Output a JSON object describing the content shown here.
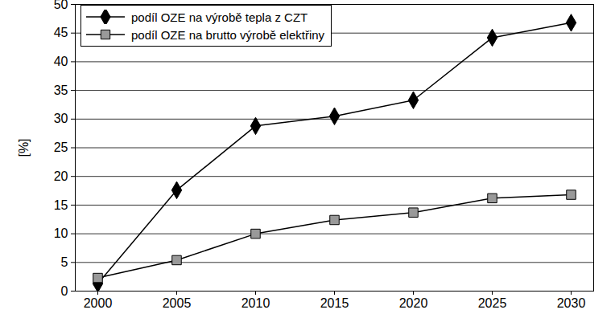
{
  "chart_data": {
    "type": "line",
    "y_label": "[%]",
    "categories": [
      "2000",
      "2005",
      "2010",
      "2015",
      "2020",
      "2025",
      "2030"
    ],
    "series": [
      {
        "name": "podíl OZE na výrobě tepla z CZT",
        "color": "#000000",
        "marker": "diamond",
        "values": [
          1.3,
          17.6,
          28.8,
          30.5,
          33.3,
          44.2,
          46.8
        ]
      },
      {
        "name": "podíl OZE na brutto výrobě elektřiny",
        "color": "#999999",
        "marker": "square",
        "values": [
          2.3,
          5.4,
          10.0,
          12.4,
          13.7,
          16.2,
          16.8
        ]
      }
    ],
    "ylim": [
      0,
      50
    ],
    "yticks": [
      0,
      5,
      10,
      15,
      20,
      25,
      30,
      35,
      40,
      45,
      50
    ],
    "grid": true,
    "legend": "upper left"
  }
}
